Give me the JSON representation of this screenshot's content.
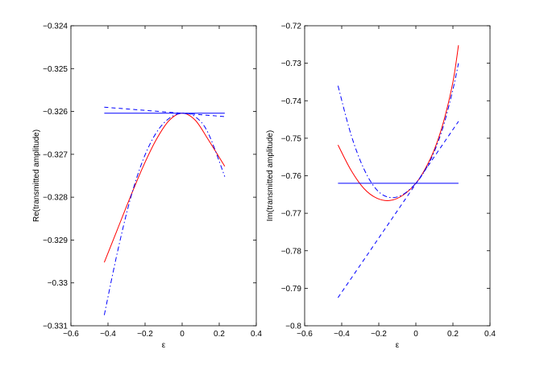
{
  "chart_data": [
    {
      "type": "line",
      "xlabel": "ε",
      "ylabel": "Re(transmitted amplitude)",
      "xlim": [
        -0.6,
        0.4
      ],
      "ylim": [
        -0.331,
        -0.324
      ],
      "xticks": [
        -0.6,
        -0.4,
        -0.2,
        0,
        0.2,
        0.4
      ],
      "xtick_labels": [
        "−0.6",
        "−0.4",
        "−0.2",
        "0",
        "0.2",
        "0.4"
      ],
      "yticks": [
        -0.324,
        -0.325,
        -0.326,
        -0.327,
        -0.328,
        -0.329,
        -0.33,
        -0.331
      ],
      "ytick_labels": [
        "−0.324",
        "−0.325",
        "−0.326",
        "−0.327",
        "−0.328",
        "−0.329",
        "−0.33",
        "−0.331"
      ],
      "grid": false,
      "series": [
        {
          "color": "#ff0000",
          "style": "solid",
          "x": [
            -0.42,
            -0.35,
            -0.28,
            -0.21,
            -0.14,
            -0.07,
            0,
            0.07,
            0.14,
            0.23
          ],
          "y": [
            -0.32952,
            -0.32876,
            -0.328,
            -0.32728,
            -0.32666,
            -0.32621,
            -0.32604,
            -0.3262,
            -0.32665,
            -0.32728
          ]
        },
        {
          "color": "#0000ff",
          "style": "dashdot",
          "x": [
            -0.42,
            -0.35,
            -0.28,
            -0.21,
            -0.14,
            -0.07,
            0,
            0.07,
            0.14,
            0.23
          ],
          "y": [
            -0.33075,
            -0.3293,
            -0.32805,
            -0.32712,
            -0.3265,
            -0.32616,
            -0.32604,
            -0.32612,
            -0.3265,
            -0.32752
          ]
        },
        {
          "color": "#0000ff",
          "style": "dashed",
          "x": [
            -0.42,
            0.23
          ],
          "y": [
            -0.3259,
            -0.32612
          ]
        },
        {
          "color": "#0000ff",
          "style": "solid",
          "x": [
            -0.42,
            0.23
          ],
          "y": [
            -0.32604,
            -0.32604
          ]
        }
      ]
    },
    {
      "type": "line",
      "xlabel": "ε",
      "ylabel": "Im(transmitted amplitude)",
      "xlim": [
        -0.6,
        0.4
      ],
      "ylim": [
        -0.8,
        -0.72
      ],
      "xticks": [
        -0.6,
        -0.4,
        -0.2,
        0,
        0.2,
        0.4
      ],
      "xtick_labels": [
        "−0.6",
        "−0.4",
        "−0.2",
        "0",
        "0.2",
        "0.4"
      ],
      "yticks": [
        -0.72,
        -0.73,
        -0.74,
        -0.75,
        -0.76,
        -0.77,
        -0.78,
        -0.79,
        -0.8
      ],
      "ytick_labels": [
        "−0.72",
        "−0.73",
        "−0.74",
        "−0.75",
        "−0.76",
        "−0.77",
        "−0.78",
        "−0.79",
        "−0.8"
      ],
      "grid": false,
      "series": [
        {
          "color": "#ff0000",
          "style": "solid",
          "x": [
            -0.42,
            -0.35,
            -0.28,
            -0.21,
            -0.14,
            -0.07,
            0,
            0.05,
            0.1,
            0.15,
            0.2,
            0.23
          ],
          "y": [
            -0.7518,
            -0.7585,
            -0.7634,
            -0.766,
            -0.7666,
            -0.7652,
            -0.762,
            -0.7582,
            -0.753,
            -0.7455,
            -0.735,
            -0.7252
          ]
        },
        {
          "color": "#0000ff",
          "style": "dashdot",
          "x": [
            -0.42,
            -0.35,
            -0.28,
            -0.21,
            -0.14,
            -0.07,
            0,
            0.05,
            0.1,
            0.15,
            0.2,
            0.23
          ],
          "y": [
            -0.736,
            -0.749,
            -0.7582,
            -0.7638,
            -0.7658,
            -0.765,
            -0.762,
            -0.7585,
            -0.7535,
            -0.7465,
            -0.737,
            -0.73
          ]
        },
        {
          "color": "#0000ff",
          "style": "dashed",
          "x": [
            -0.42,
            0.23
          ],
          "y": [
            -0.7925,
            -0.7455
          ]
        },
        {
          "color": "#0000ff",
          "style": "solid",
          "x": [
            -0.42,
            0.23
          ],
          "y": [
            -0.762,
            -0.762
          ]
        }
      ]
    }
  ]
}
